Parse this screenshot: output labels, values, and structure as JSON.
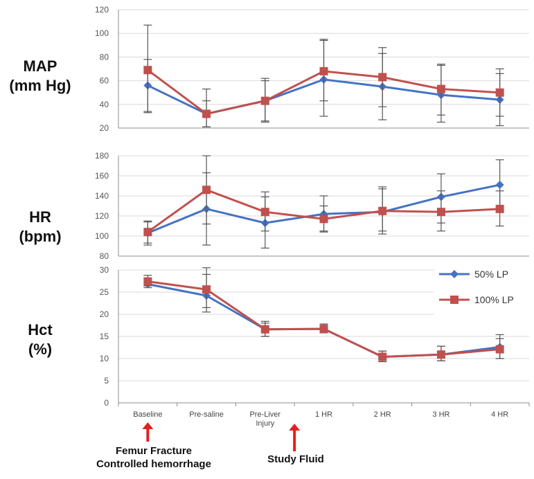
{
  "chart_data": [
    {
      "type": "line",
      "panel_label": [
        "MAP",
        "(mm Hg)"
      ],
      "categories": [
        "Baseline",
        "Pre-saline",
        "Pre-Liver Injury",
        "1 HR",
        "2 HR",
        "3 HR",
        "4 HR"
      ],
      "ylim": [
        20,
        120
      ],
      "yticks": [
        "20",
        "40",
        "60",
        "80",
        "100",
        "120"
      ],
      "grid": true,
      "series": [
        {
          "name": "50% LP",
          "color": "#4472c4",
          "values": [
            56,
            32,
            43,
            61,
            55,
            48,
            44
          ],
          "err_low": [
            34,
            21,
            26,
            30,
            27,
            25,
            22
          ],
          "err_high": [
            78,
            43,
            60,
            95,
            83,
            73,
            66
          ]
        },
        {
          "name": "100% LP",
          "color": "#c0504d",
          "values": [
            69,
            32,
            43,
            68,
            63,
            53,
            50
          ],
          "err_low": [
            33,
            21,
            25,
            43,
            38,
            31,
            30
          ],
          "err_high": [
            107,
            53,
            62,
            94,
            88,
            74,
            70
          ]
        }
      ]
    },
    {
      "type": "line",
      "panel_label": [
        "HR",
        "(bpm)"
      ],
      "categories": [
        "Baseline",
        "Pre-saline",
        "Pre-Liver Injury",
        "1 HR",
        "2 HR",
        "3 HR",
        "4 HR"
      ],
      "ylim": [
        80,
        180
      ],
      "yticks": [
        "80",
        "100",
        "120",
        "140",
        "160",
        "180"
      ],
      "grid": true,
      "series": [
        {
          "name": "50% LP",
          "color": "#4472c4",
          "values": [
            103,
            127,
            113,
            122,
            124,
            139,
            151
          ],
          "err_low": [
            91,
            91,
            88,
            104,
            102,
            113,
            124
          ],
          "err_high": [
            115,
            163,
            139,
            140,
            147,
            162,
            176
          ]
        },
        {
          "name": "100% LP",
          "color": "#c0504d",
          "values": [
            104,
            146,
            124,
            117,
            125,
            124,
            127
          ],
          "err_low": [
            93,
            112,
            105,
            105,
            105,
            105,
            110
          ],
          "err_high": [
            114,
            180,
            144,
            130,
            149,
            145,
            145
          ]
        }
      ]
    },
    {
      "type": "line",
      "panel_label": [
        "Hct",
        "(%)"
      ],
      "categories": [
        "Baseline",
        "Pre-saline",
        "Pre-Liver Injury",
        "1 HR",
        "2 HR",
        "3 HR",
        "4 HR"
      ],
      "category_labels": [
        [
          "Baseline"
        ],
        [
          "Pre-saline"
        ],
        [
          "Pre-Liver",
          "Injury"
        ],
        [
          "1 HR"
        ],
        [
          "2 HR"
        ],
        [
          "3 HR"
        ],
        [
          "4 HR"
        ]
      ],
      "ylim": [
        0,
        30
      ],
      "yticks": [
        "0",
        "5",
        "10",
        "15",
        "20",
        "25",
        "30"
      ],
      "grid": true,
      "legend": {
        "placement": "top-right",
        "entries": [
          "50% LP",
          "100% LP"
        ]
      },
      "series": [
        {
          "name": "50% LP",
          "color": "#4472c4",
          "values": [
            26.8,
            24.2,
            16.6,
            16.7,
            10.4,
            10.9,
            12.6
          ],
          "err_low": [
            26,
            20.5,
            15,
            15.8,
            9.3,
            9.5,
            10
          ],
          "err_high": [
            28.2,
            29,
            18,
            17.8,
            11.7,
            12.8,
            15.4
          ]
        },
        {
          "name": "100% LP",
          "color": "#c0504d",
          "values": [
            27.4,
            25.6,
            16.6,
            16.7,
            10.4,
            10.9,
            12.1
          ],
          "err_low": [
            26.4,
            21.5,
            15,
            15.8,
            9.3,
            9.5,
            10
          ],
          "err_high": [
            28.8,
            30.5,
            18.4,
            17.8,
            11.7,
            12.8,
            14.5
          ]
        }
      ]
    }
  ],
  "annotations": {
    "arrow_color": "#e02020",
    "events": [
      {
        "category_index": 0,
        "lines": [
          "Femur Fracture",
          "Controlled hemorrhage"
        ]
      },
      {
        "category_index": 2.5,
        "lines": [
          "Study Fluid"
        ]
      }
    ]
  }
}
